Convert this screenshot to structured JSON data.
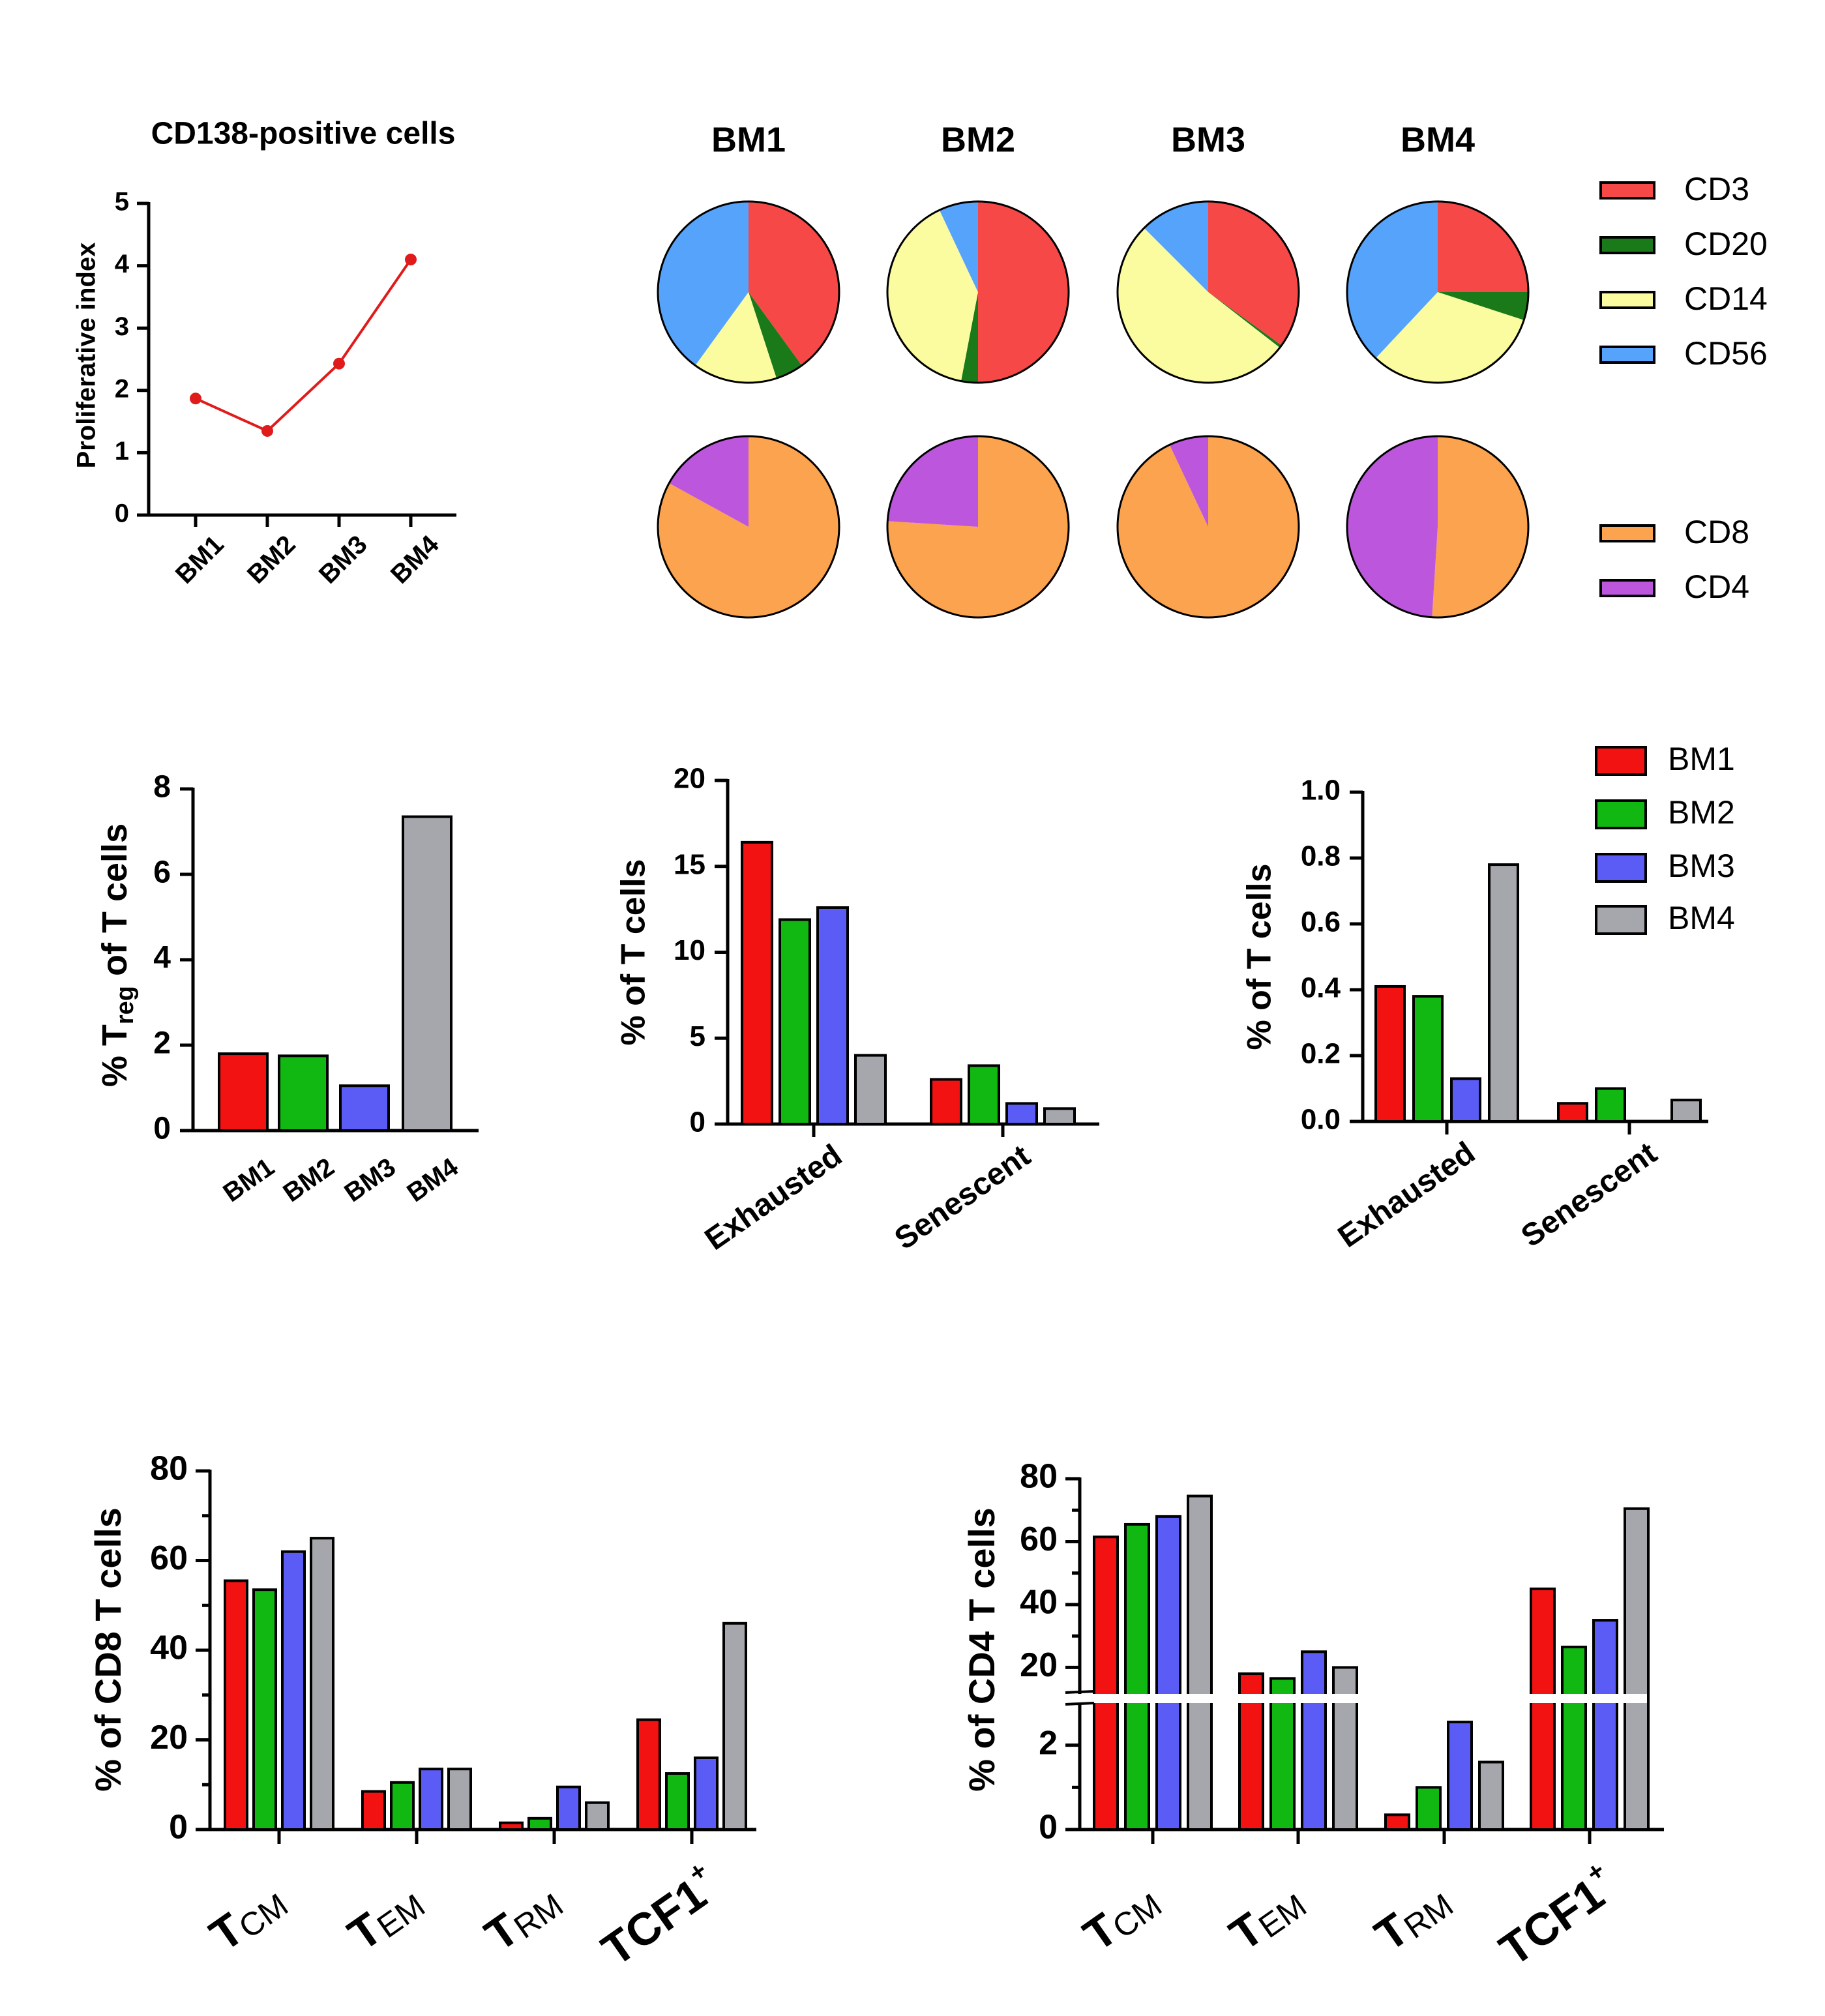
{
  "colors": {
    "BM1": "#f21212",
    "BM2": "#12b812",
    "BM3": "#5b5bf5",
    "BM4": "#a6a6ad",
    "line": "#e01b1b",
    "CD3": "#f74848",
    "CD20": "#1a7a1a",
    "CD14": "#fbfba0",
    "CD56": "#56a3fb",
    "CD8": "#fba34e",
    "CD4": "#bc56dc"
  },
  "chart_data": [
    {
      "id": "proliferative",
      "type": "line",
      "title": "CD138-positive cells",
      "ylabel": "Proliferative index",
      "categories": [
        "BM1",
        "BM2",
        "BM3",
        "BM4"
      ],
      "values": [
        1.87,
        1.35,
        2.43,
        4.1
      ],
      "ylim": [
        0,
        5
      ],
      "yticks": [
        "0",
        "1",
        "2",
        "3",
        "4",
        "5"
      ]
    },
    {
      "id": "pies",
      "type": "pie",
      "sample_labels": [
        "BM1",
        "BM2",
        "BM3",
        "BM4"
      ],
      "rows": [
        {
          "categories": [
            "CD3",
            "CD20",
            "CD14",
            "CD56"
          ],
          "samples": [
            {
              "name": "BM1",
              "values": [
                40,
                5,
                15,
                40
              ]
            },
            {
              "name": "BM2",
              "values": [
                50,
                3,
                40,
                7
              ]
            },
            {
              "name": "BM3",
              "values": [
                35,
                0.5,
                52,
                12.5
              ]
            },
            {
              "name": "BM4",
              "values": [
                25,
                5,
                32,
                38
              ]
            }
          ]
        },
        {
          "categories": [
            "CD8",
            "CD4"
          ],
          "samples": [
            {
              "name": "BM1",
              "values": [
                83,
                17
              ]
            },
            {
              "name": "BM2",
              "values": [
                76,
                24
              ]
            },
            {
              "name": "BM3",
              "values": [
                93,
                7
              ]
            },
            {
              "name": "BM4",
              "values": [
                51,
                49
              ]
            }
          ]
        }
      ],
      "legend_top": [
        "CD3",
        "CD20",
        "CD14",
        "CD56"
      ],
      "legend_bottom": [
        "CD8",
        "CD4"
      ]
    },
    {
      "id": "treg",
      "type": "bar",
      "ylabel_main": "% T",
      "ylabel_sub": "reg",
      "ylabel_rest": " of T cells",
      "categories": [
        "BM1",
        "BM2",
        "BM3",
        "BM4"
      ],
      "values": [
        1.8,
        1.75,
        1.05,
        7.35
      ],
      "ylim": [
        0,
        8
      ],
      "yticks": [
        "0",
        "2",
        "4",
        "6",
        "8"
      ]
    },
    {
      "id": "exh_sen_1",
      "type": "bar",
      "ylabel": "% of T cells",
      "categories": [
        "Exhausted",
        "Senescent"
      ],
      "series": [
        {
          "name": "BM1",
          "values": [
            16.4,
            2.6
          ]
        },
        {
          "name": "BM2",
          "values": [
            11.9,
            3.4
          ]
        },
        {
          "name": "BM3",
          "values": [
            12.6,
            1.2
          ]
        },
        {
          "name": "BM4",
          "values": [
            4.0,
            0.9
          ]
        }
      ],
      "ylim": [
        0,
        20
      ],
      "yticks": [
        "0",
        "5",
        "10",
        "15",
        "20"
      ]
    },
    {
      "id": "exh_sen_2",
      "type": "bar",
      "ylabel": "% of T cells",
      "categories": [
        "Exhausted",
        "Senescent"
      ],
      "series": [
        {
          "name": "BM1",
          "values": [
            0.41,
            0.055
          ]
        },
        {
          "name": "BM2",
          "values": [
            0.38,
            0.1
          ]
        },
        {
          "name": "BM3",
          "values": [
            0.13,
            0
          ]
        },
        {
          "name": "BM4",
          "values": [
            0.78,
            0.065
          ]
        }
      ],
      "ylim": [
        0,
        1.0
      ],
      "yticks": [
        "0.0",
        "0.2",
        "0.4",
        "0.6",
        "0.8",
        "1.0"
      ],
      "legend": [
        "BM1",
        "BM2",
        "BM3",
        "BM4"
      ]
    },
    {
      "id": "cd8_subsets",
      "type": "bar",
      "ylabel": "% of CD8 T cells",
      "categories": [
        {
          "main": "T",
          "sub": "CM"
        },
        {
          "main": "T",
          "sub": "EM"
        },
        {
          "main": "T",
          "sub": "RM"
        },
        {
          "main": "TCF1",
          "sup": "+"
        }
      ],
      "series": [
        {
          "name": "BM1",
          "values": [
            55.5,
            8.5,
            1.5,
            24.5
          ]
        },
        {
          "name": "BM2",
          "values": [
            53.5,
            10.5,
            2.5,
            12.5
          ]
        },
        {
          "name": "BM3",
          "values": [
            62.0,
            13.5,
            9.5,
            16.0
          ]
        },
        {
          "name": "BM4",
          "values": [
            65.0,
            13.5,
            6.0,
            46.0
          ]
        }
      ],
      "ylim": [
        0,
        80
      ],
      "yticks": [
        "0",
        "20",
        "40",
        "60",
        "80"
      ]
    },
    {
      "id": "cd4_subsets",
      "type": "bar",
      "ylabel": "% of CD4 T cells",
      "categories": [
        {
          "main": "T",
          "sub": "CM"
        },
        {
          "main": "T",
          "sub": "EM"
        },
        {
          "main": "T",
          "sub": "RM"
        },
        {
          "main": "TCF1",
          "sup": "+"
        }
      ],
      "series": [
        {
          "name": "BM1",
          "values": [
            61.5,
            18.0,
            0.35,
            45.0
          ]
        },
        {
          "name": "BM2",
          "values": [
            65.5,
            16.5,
            1.0,
            26.5
          ]
        },
        {
          "name": "BM3",
          "values": [
            68.0,
            25.0,
            2.55,
            35.0
          ]
        },
        {
          "name": "BM4",
          "values": [
            74.5,
            20.0,
            1.6,
            70.5
          ]
        }
      ],
      "y_axis_break": [
        3,
        12
      ],
      "lower_ylim": [
        0,
        3
      ],
      "upper_ylim": [
        12,
        80
      ],
      "yticks_lower": [
        "0",
        "2"
      ],
      "yticks_upper": [
        "20",
        "40",
        "60",
        "80"
      ]
    }
  ]
}
